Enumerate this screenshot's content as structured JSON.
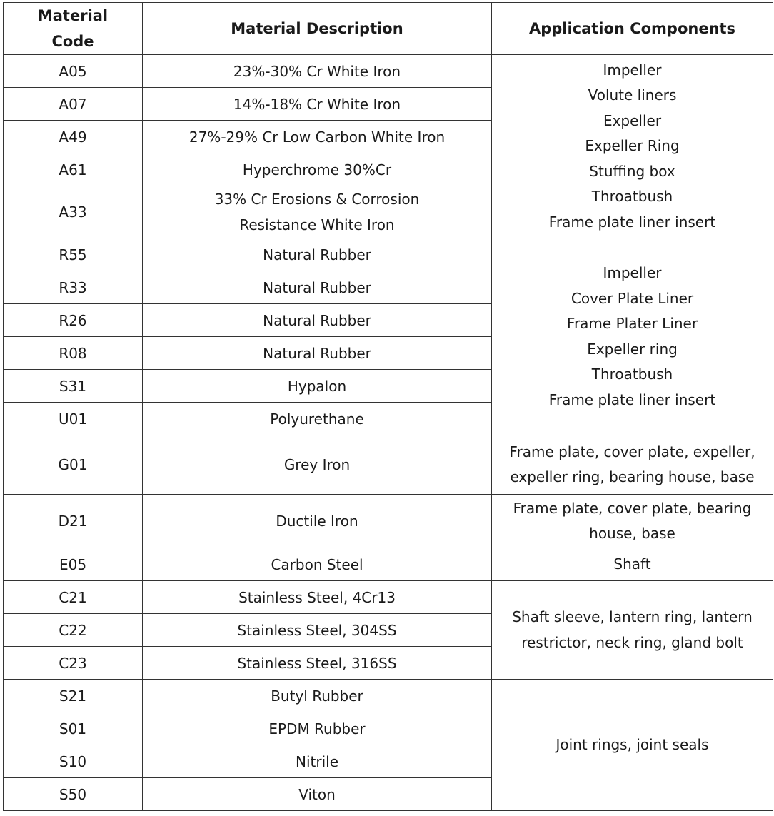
{
  "headers": [
    "Material\nCode",
    "Material Description",
    "Application Components"
  ],
  "rows": [
    {
      "code": "A05",
      "desc": "23%-30% Cr White Iron"
    },
    {
      "code": "A07",
      "desc": "14%-18% Cr White Iron"
    },
    {
      "code": "A49",
      "desc": "27%-29% Cr Low Carbon White Iron"
    },
    {
      "code": "A61",
      "desc": "Hyperchrome 30%Cr"
    },
    {
      "code": "A33",
      "desc": "33% Cr Erosions & Corrosion\nResistance White Iron"
    },
    {
      "code": "R55",
      "desc": "Natural Rubber"
    },
    {
      "code": "R33",
      "desc": "Natural Rubber"
    },
    {
      "code": "R26",
      "desc": "Natural Rubber"
    },
    {
      "code": "R08",
      "desc": "Natural Rubber"
    },
    {
      "code": "S31",
      "desc": "Hypalon"
    },
    {
      "code": "U01",
      "desc": "Polyurethane"
    },
    {
      "code": "G01",
      "desc": "Grey Iron"
    },
    {
      "code": "D21",
      "desc": "Ductile Iron"
    },
    {
      "code": "E05",
      "desc": "Carbon Steel"
    },
    {
      "code": "C21",
      "desc": "Stainless Steel, 4Cr13"
    },
    {
      "code": "C22",
      "desc": "Stainless Steel, 304SS"
    },
    {
      "code": "C23",
      "desc": "Stainless Steel, 316SS"
    },
    {
      "code": "S21",
      "desc": "Butyl Rubber"
    },
    {
      "code": "S01",
      "desc": "EPDM Rubber"
    },
    {
      "code": "S10",
      "desc": "Nitrile"
    },
    {
      "code": "S50",
      "desc": "Viton"
    }
  ],
  "applications": [
    "Impeller\nVolute liners\nExpeller\nExpeller Ring\nStuffing box\nThroatbush\nFrame plate liner insert",
    "Impeller\nCover Plate Liner\nFrame Plater Liner\nExpeller ring\nThroatbush\nFrame plate liner insert",
    "Frame plate, cover plate, expeller,\nexpeller ring, bearing house, base",
    "Frame plate, cover plate, bearing\nhouse, base",
    "Shaft",
    "Shaft sleeve, lantern ring, lantern\nrestrictor, neck ring, gland bolt",
    "Joint rings, joint seals"
  ]
}
